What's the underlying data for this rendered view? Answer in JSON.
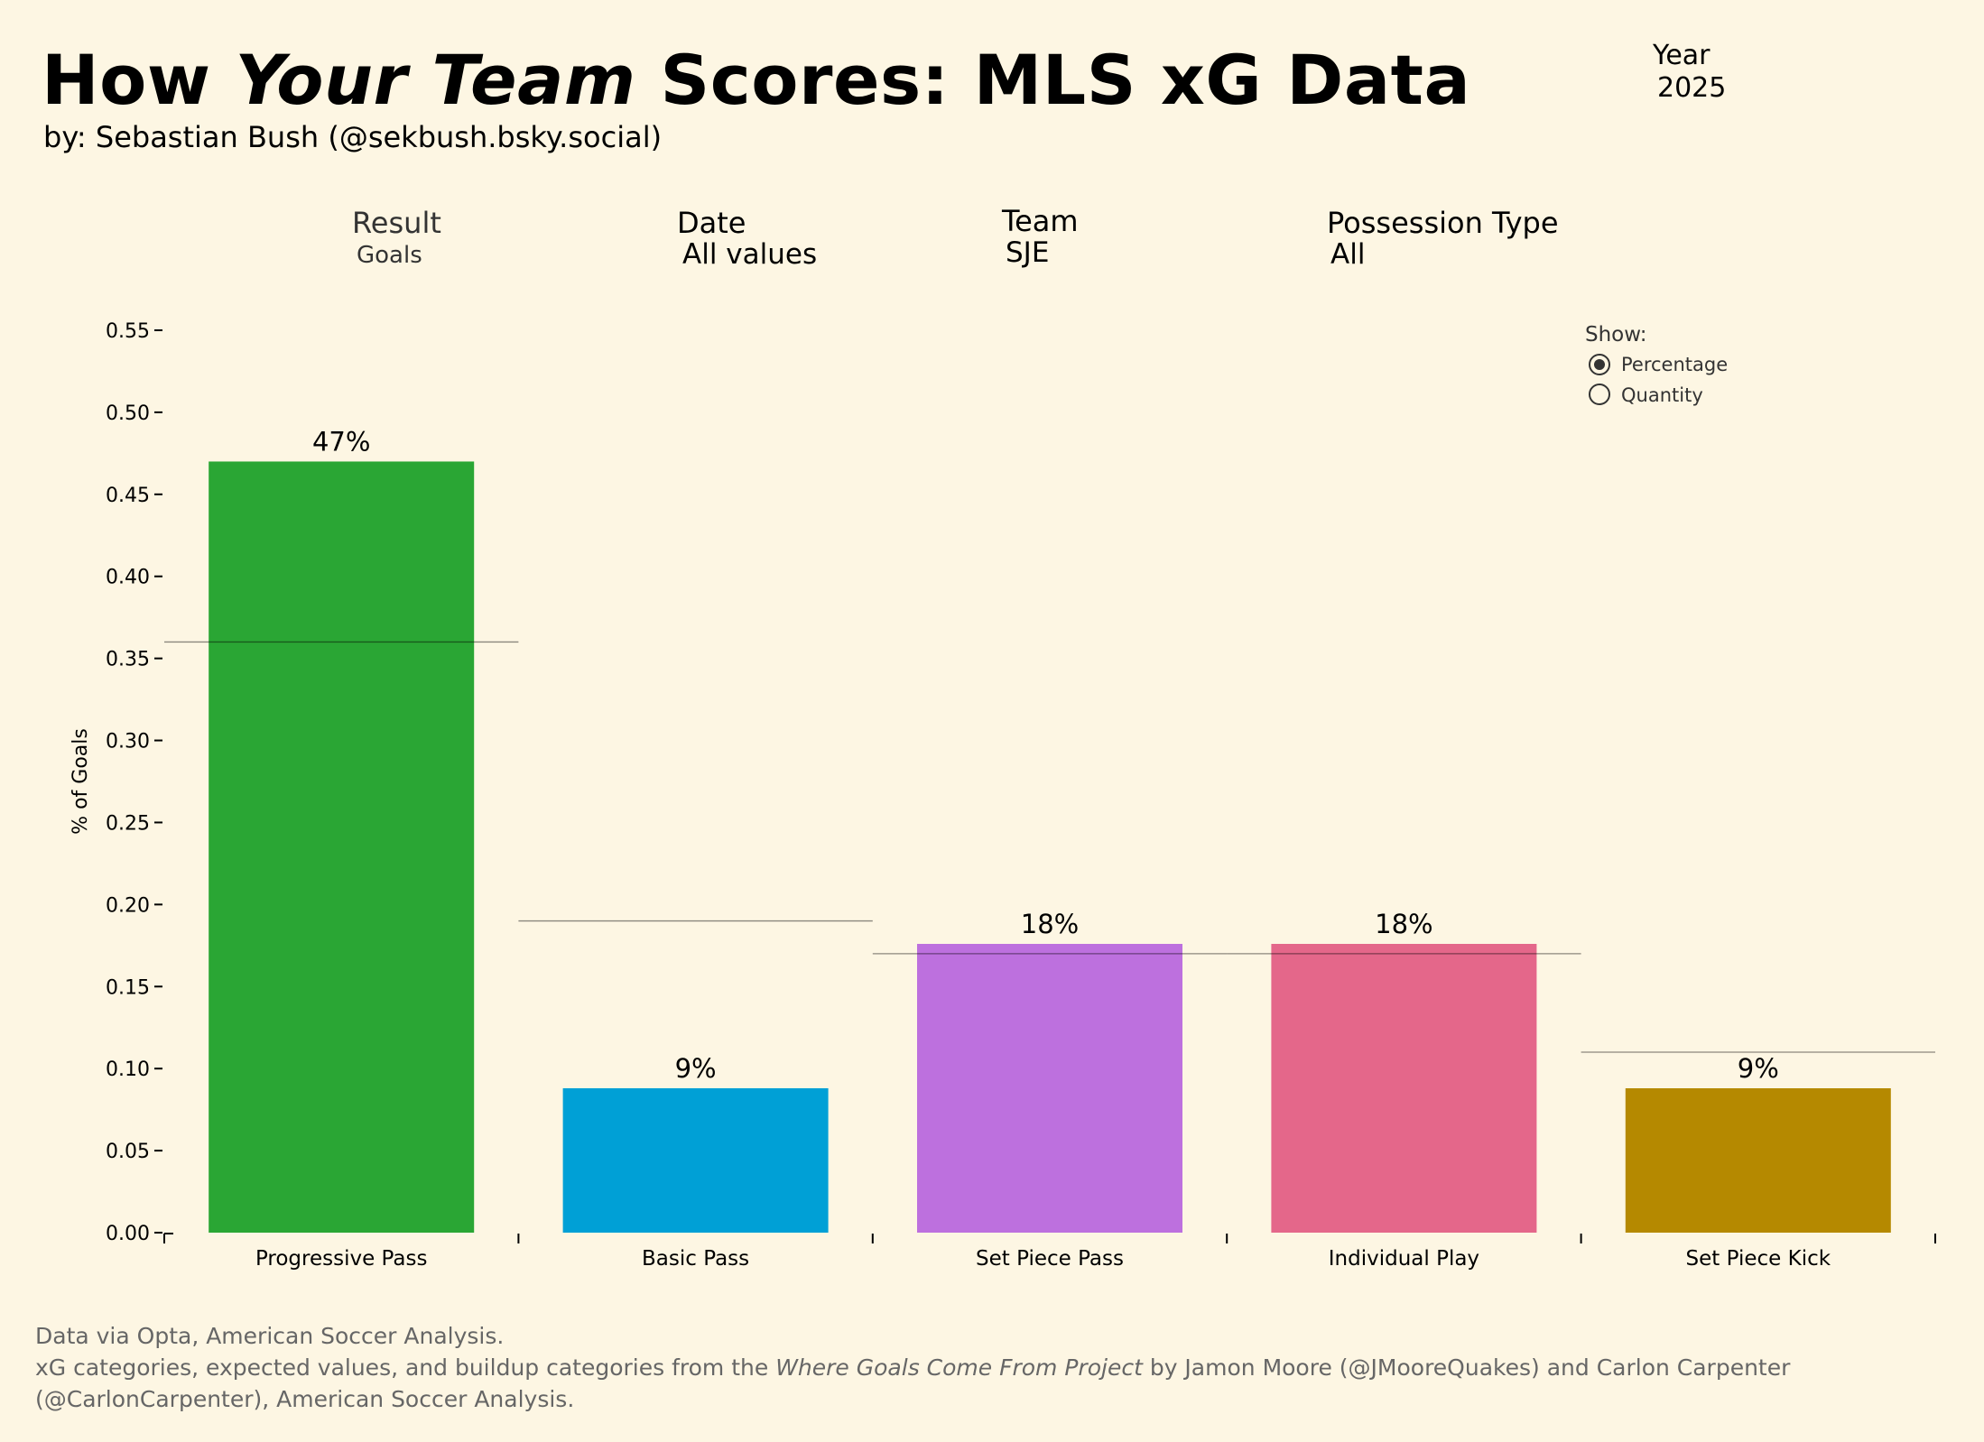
{
  "header": {
    "title_part1": "How ",
    "title_italic": "Your Team",
    "title_part2": "  Scores: MLS xG Data",
    "byline": "by: Sebastian Bush (@sekbush.bsky.social)",
    "year_label": "Year",
    "year_value": "2025"
  },
  "filters": {
    "result_label": "Result",
    "result_value": "Goals",
    "date_label": "Date",
    "date_value": "All values",
    "team_label": "Team",
    "team_value": "SJE",
    "possession_label": "Possession Type",
    "possession_value": "All"
  },
  "show": {
    "label": "Show:",
    "options": [
      "Percentage",
      "Quantity"
    ],
    "selected": "Percentage"
  },
  "chart_data": {
    "type": "bar",
    "categories": [
      "Progressive Pass",
      "Basic Pass",
      "Set Piece Pass",
      "Individual Play",
      "Set Piece Kick"
    ],
    "values": [
      0.47,
      0.088,
      0.176,
      0.176,
      0.088
    ],
    "data_labels": [
      "47%",
      "9%",
      "18%",
      "18%",
      "9%"
    ],
    "expected_values": [
      0.36,
      0.19,
      0.17,
      0.17,
      0.11
    ],
    "colors": [
      "#2aa634",
      "#00a0d6",
      "#bd70de",
      "#e4678a",
      "#b58900"
    ],
    "ylabel": "% of Goals",
    "ylim": [
      0,
      0.55
    ],
    "yticks": [
      "0.00",
      "0.05",
      "0.10",
      "0.15",
      "0.20",
      "0.25",
      "0.30",
      "0.35",
      "0.40",
      "0.45",
      "0.50",
      "0.55"
    ],
    "grid": false
  },
  "footer": {
    "line1": "Data via Opta, American Soccer Analysis.",
    "line2_pre": "xG categories, expected values, and buildup categories from the ",
    "line2_italic": "Where Goals Come From Project",
    "line2_post": " by Jamon Moore (@JMooreQuakes) and Carlon Carpenter (@CarlonCarpenter), American Soccer Analysis."
  }
}
